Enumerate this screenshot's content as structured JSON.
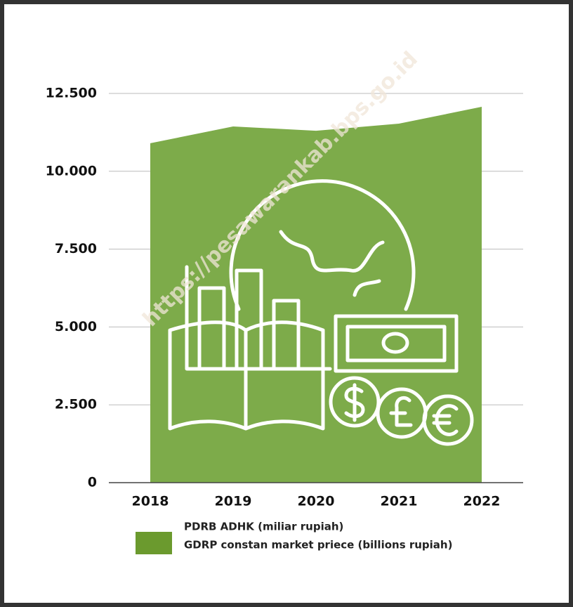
{
  "chart_data": {
    "type": "area",
    "categories": [
      "2018",
      "2019",
      "2020",
      "2021",
      "2022"
    ],
    "series": [
      {
        "name": "PDRB ADHK (miliar rupiah)",
        "color": "#7dab4a",
        "values": [
          10900,
          11440,
          11300,
          11530,
          12070
        ]
      }
    ],
    "legend_subtitle": "GDRP constan market priece (billions rupiah)",
    "legend_color": "#6b9a2e",
    "ylim": [
      0,
      12500
    ],
    "yticks": [
      0,
      {
        "value": 2500,
        "label": "2.500"
      },
      {
        "value": 5000,
        "label": "5.000"
      },
      {
        "value": 7500,
        "label": "7.500"
      },
      {
        "value": 10000,
        "label": "10.000"
      },
      {
        "value": 12500,
        "label": "12.500"
      }
    ],
    "grid": true,
    "watermark": "https://pesawarankab.bps.go.id"
  }
}
